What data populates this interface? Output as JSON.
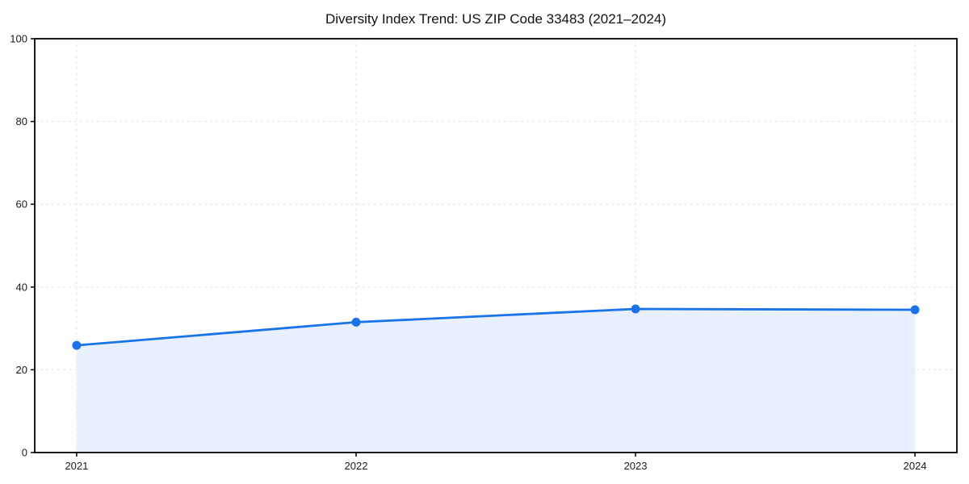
{
  "chart_data": {
    "type": "area",
    "title": "Diversity Index Trend: US ZIP Code 33483 (2021–2024)",
    "categories": [
      "2021",
      "2022",
      "2023",
      "2024"
    ],
    "series": [
      {
        "name": "Diversity Index",
        "values": [
          25.9,
          31.5,
          34.7,
          34.5
        ]
      }
    ],
    "xlabel": "",
    "ylabel": "",
    "ylim": [
      0,
      100
    ],
    "yticks": [
      0,
      20,
      40,
      60,
      80,
      100
    ],
    "grid": true,
    "grid_style": "dashed",
    "legend": false,
    "colors": {
      "line": "#1a73e8",
      "marker": "#1a73e8",
      "fill": "#e8f0fd",
      "gridline": "#e2e2e2",
      "spine": "#000000",
      "tick_label": "#1a1a1a",
      "background": "#ffffff"
    }
  }
}
